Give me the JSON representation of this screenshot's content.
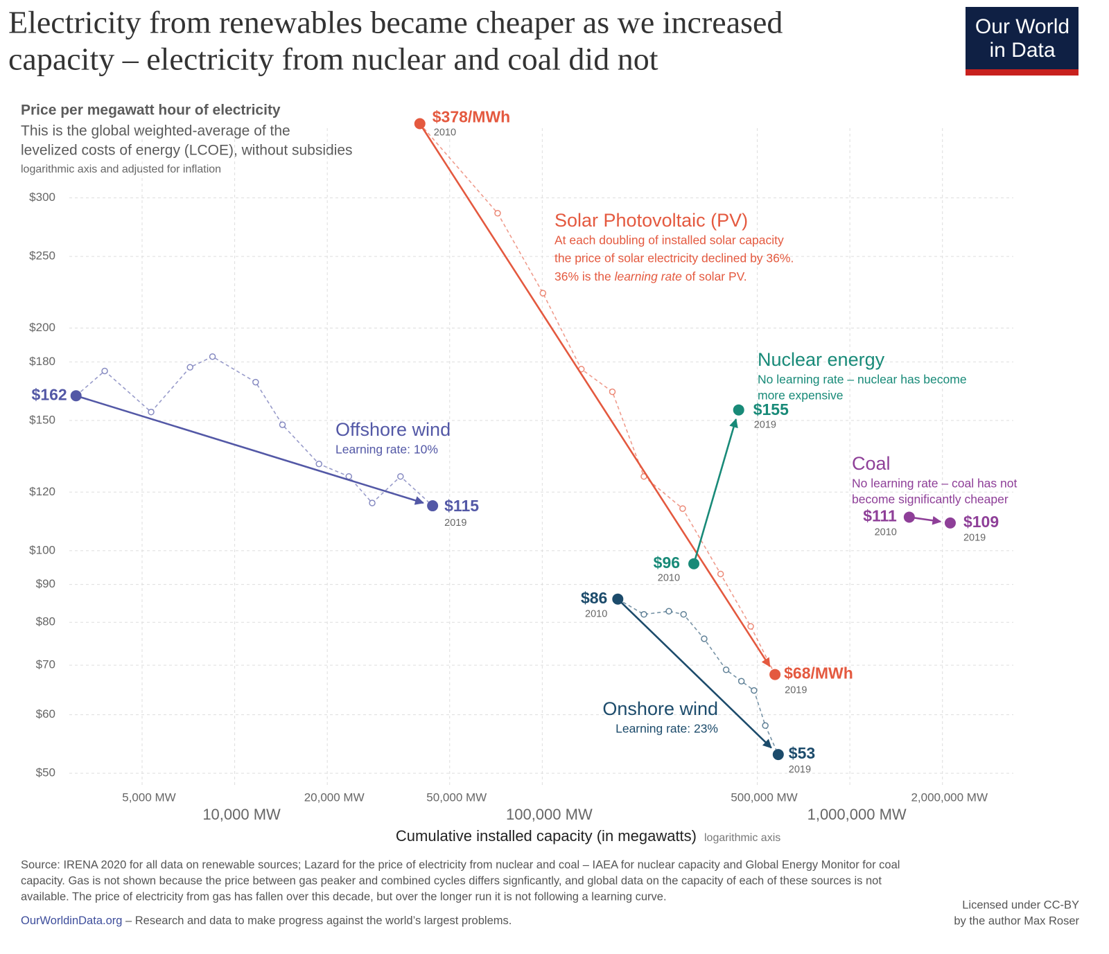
{
  "header": {
    "title_lines": [
      "Electricity from renewables became cheaper as we increased",
      "capacity – electricity from nuclear and coal did not"
    ],
    "logo_lines": [
      "Our World",
      "in Data"
    ]
  },
  "chart_data": {
    "type": "scatter",
    "subtitle": "Price per megawatt hour of electricity",
    "description_lines": [
      "This is the global weighted-average of the",
      "levelized costs of energy (LCOE), without subsidies"
    ],
    "axis_note": "logarithmic axis and adjusted for inflation",
    "xlabel": "Cumulative installed capacity (in megawatts)",
    "xlabel_note": "logarithmic axis",
    "xscale": "log",
    "yscale": "log",
    "grid": true,
    "xlim": [
      2900,
      3400000
    ],
    "ylim": [
      48,
      385
    ],
    "xticks": [
      {
        "value": 5000,
        "label": "5,000 MW"
      },
      {
        "value": 10000,
        "label": "10,000 MW"
      },
      {
        "value": 20000,
        "label": "20,000 MW"
      },
      {
        "value": 50000,
        "label": "50,000 MW"
      },
      {
        "value": 100000,
        "label": "100,000 MW"
      },
      {
        "value": 500000,
        "label": "500,000 MW"
      },
      {
        "value": 1000000,
        "label": "1,000,000 MW"
      },
      {
        "value": 2000000,
        "label": "2,000,000 MW"
      }
    ],
    "yticks": [
      {
        "value": 50,
        "label": "$50"
      },
      {
        "value": 60,
        "label": "$60"
      },
      {
        "value": 70,
        "label": "$70"
      },
      {
        "value": 80,
        "label": "$80"
      },
      {
        "value": 90,
        "label": "$90"
      },
      {
        "value": 100,
        "label": "$100"
      },
      {
        "value": 120,
        "label": "$120"
      },
      {
        "value": 150,
        "label": "$150"
      },
      {
        "value": 180,
        "label": "$180"
      },
      {
        "value": 200,
        "label": "$200"
      },
      {
        "value": 250,
        "label": "$250"
      },
      {
        "value": 300,
        "label": "$300"
      }
    ],
    "series": [
      {
        "name": "Solar Photovoltaic (PV)",
        "color": "#e4593f",
        "description": [
          "At each doubling of installed solar capacity",
          "the price of solar electricity declined by 36%.",
          [
            "36% is the ",
            {
              "text": "learning rate",
              "style": "italic"
            },
            " of solar PV."
          ]
        ],
        "x": [
          40000,
          71600,
          100500,
          134000,
          169000,
          214000,
          286000,
          380000,
          476000,
          571000
        ],
        "values": [
          378,
          286,
          223,
          176,
          164,
          126,
          114,
          93,
          79,
          68
        ],
        "value_labels": [
          "$378/MWh",
          null,
          null,
          null,
          null,
          null,
          null,
          null,
          null,
          "$68/MWh"
        ],
        "year_labels": [
          "2010",
          null,
          null,
          null,
          null,
          null,
          null,
          null,
          null,
          "2019"
        ]
      },
      {
        "name": "Nuclear energy",
        "color": "#188a78",
        "description": [
          "No learning rate – nuclear has become",
          "more expensive"
        ],
        "x": [
          311000,
          435000
        ],
        "values": [
          96,
          155
        ],
        "value_labels": [
          "$96",
          "$155"
        ],
        "year_labels": [
          "2010",
          "2019"
        ]
      },
      {
        "name": "Coal",
        "color": "#8e3f98",
        "description": [
          "No learning rate – coal has not",
          "become significantly cheaper"
        ],
        "x": [
          1560000,
          2120000
        ],
        "values": [
          111,
          109
        ],
        "value_labels": [
          "$111",
          "$109"
        ],
        "year_labels": [
          "2010",
          "2019"
        ]
      },
      {
        "name": "Offshore wind",
        "color": "#5358a6",
        "description": [
          "Learning rate: 10%"
        ],
        "x": [
          3050,
          3780,
          5350,
          7160,
          8470,
          11700,
          14300,
          18800,
          23500,
          28000,
          34600,
          44000
        ],
        "values": [
          162,
          175,
          154,
          177,
          183,
          169,
          148,
          131,
          126,
          116,
          126,
          115
        ],
        "value_labels": [
          "$162",
          null,
          null,
          null,
          null,
          null,
          null,
          null,
          null,
          null,
          null,
          "$115"
        ],
        "year_labels": [
          null,
          null,
          null,
          null,
          null,
          null,
          null,
          null,
          null,
          null,
          null,
          "2019"
        ]
      },
      {
        "name": "Onshore wind",
        "color": "#1c4b6b",
        "description": [
          "Learning rate: 23%"
        ],
        "x": [
          176000,
          214000,
          258000,
          288000,
          336000,
          396000,
          444000,
          488000,
          531000,
          585000
        ],
        "values": [
          86,
          82,
          82.8,
          82,
          76,
          69,
          66.6,
          64.7,
          58,
          53
        ],
        "value_labels": [
          "$86",
          null,
          null,
          null,
          null,
          null,
          null,
          null,
          null,
          "$53"
        ],
        "year_labels": [
          "2010",
          null,
          null,
          null,
          null,
          null,
          null,
          null,
          null,
          "2019"
        ]
      }
    ]
  },
  "footer": {
    "source_lines": [
      "Source: IRENA 2020 for all data on renewable sources; Lazard for the price of electricity from nuclear and coal – IAEA for nuclear capacity and Global Energy Monitor for coal",
      "capacity. Gas is not shown because the price between gas peaker and combined cycles differs signficantly, and global data on the capacity of each of these sources is not",
      "available. The price of electricity from gas has fallen over this decade, but over the longer run it is not following a learning curve."
    ],
    "site": "OurWorldinData.org",
    "tagline": " – Research and data to make progress against the world’s largest problems.",
    "license_lines": [
      "Licensed under CC-BY",
      "by the author Max Roser"
    ]
  }
}
